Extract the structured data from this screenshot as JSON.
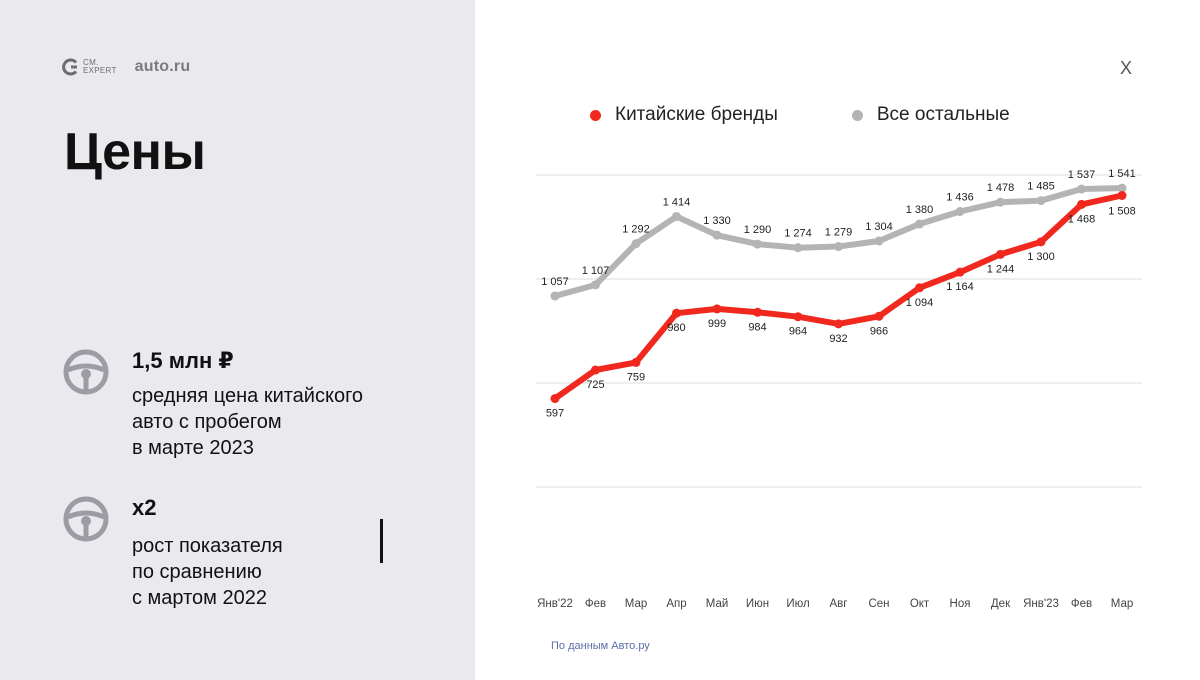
{
  "logos": {
    "partner_line1": "CM.",
    "partner_line2": "EXPERT",
    "brand": "auto.ru"
  },
  "page_title": "Цены",
  "stats": [
    {
      "value": "1,5 млн ₽",
      "lines": [
        "средняя цена китайского",
        "авто с пробегом",
        "в марте 2023"
      ]
    },
    {
      "value": "х2",
      "lines": [
        "рост показателя",
        "по сравнению",
        "с мартом 2022"
      ]
    }
  ],
  "close_label": "Х",
  "source": "По данным Авто.ру",
  "colors": {
    "chinese": "#f0281e",
    "others": "#b4b4b4",
    "grid": "#dcdcdc"
  },
  "chart_data": {
    "type": "line",
    "title": "",
    "xlabel": "",
    "ylabel": "",
    "grid": true,
    "legend": "top",
    "categories": [
      "Янв'22",
      "Фев",
      "Мар",
      "Апр",
      "Май",
      "Июн",
      "Июл",
      "Авг",
      "Сен",
      "Окт",
      "Ноя",
      "Дек",
      "Янв'23",
      "Фев",
      "Мар"
    ],
    "series": [
      {
        "name": "Китайские бренды",
        "values": [
          597,
          725,
          759,
          980,
          999,
          984,
          964,
          932,
          966,
          1094,
          1164,
          1244,
          1300,
          1468,
          1508
        ],
        "labels": [
          "597",
          "725",
          "759",
          "980",
          "999",
          "984",
          "964",
          "932",
          "966",
          "1 094",
          "1 164",
          "1 244",
          "1 300",
          "1 468",
          "1 508"
        ]
      },
      {
        "name": "Все остальные",
        "values": [
          1057,
          1107,
          1292,
          1414,
          1330,
          1290,
          1274,
          1279,
          1304,
          1380,
          1436,
          1478,
          1485,
          1537,
          1541
        ],
        "labels": [
          "1 057",
          "1 107",
          "1 292",
          "1 414",
          "1 330",
          "1 290",
          "1 274",
          "1 279",
          "1 304",
          "1 380",
          "1 436",
          "1 478",
          "1 485",
          "1 537",
          "1 541"
        ]
      }
    ],
    "ylim": [
      200,
      1600
    ]
  }
}
